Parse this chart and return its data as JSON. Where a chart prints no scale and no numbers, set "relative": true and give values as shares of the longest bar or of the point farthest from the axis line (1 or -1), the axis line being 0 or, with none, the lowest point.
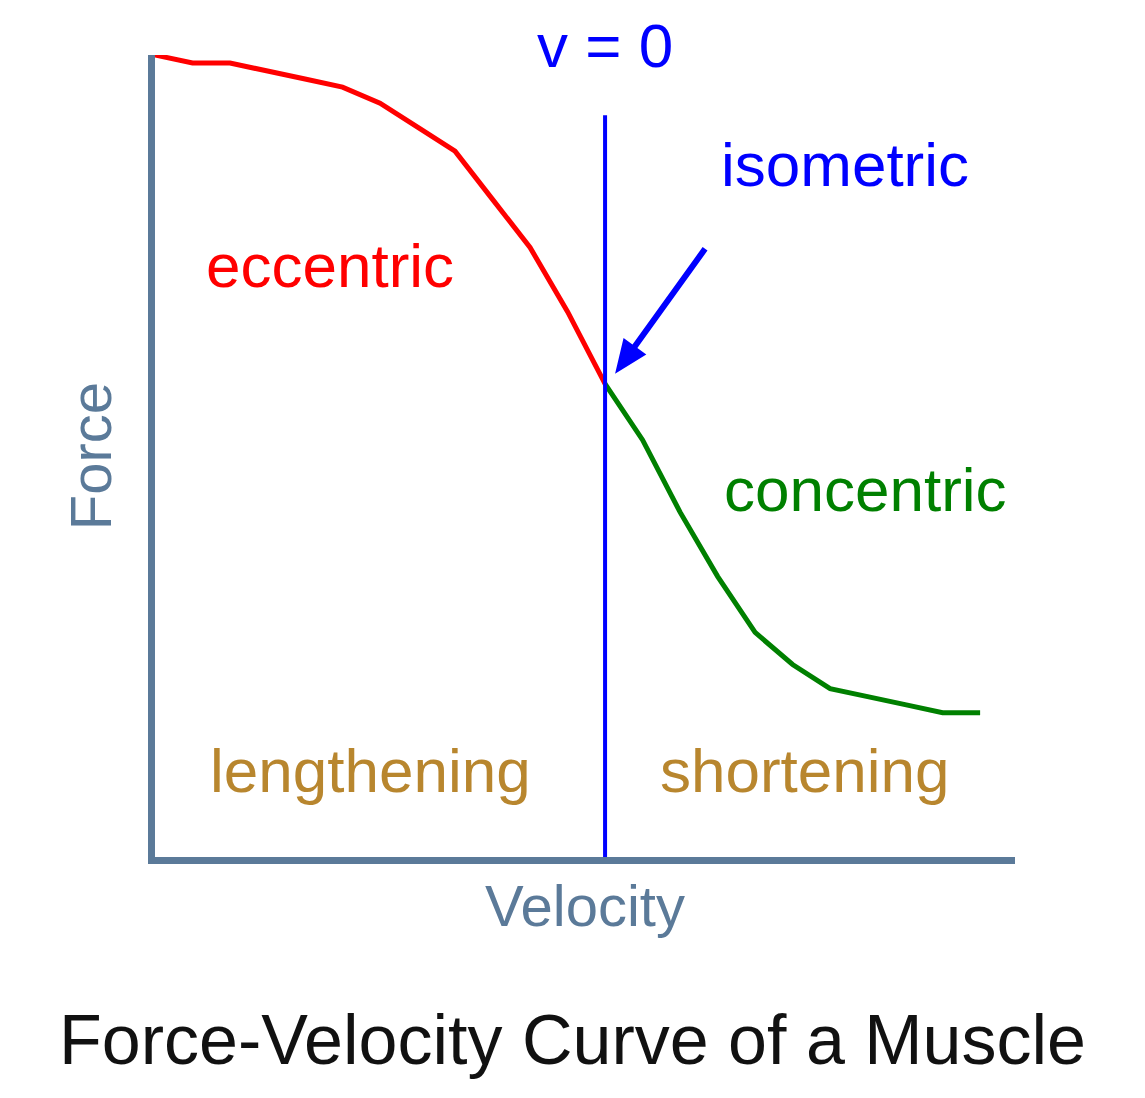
{
  "chart_data": {
    "type": "line",
    "relative": true,
    "title": "Force-Velocity Curve of a Muscle",
    "xlabel": "Velocity",
    "ylabel": "Force",
    "categories": [
      null,
      null,
      null,
      null,
      null,
      null,
      null,
      null,
      null,
      null,
      null,
      null,
      null,
      null,
      null,
      null,
      null,
      null,
      null,
      null,
      null,
      null,
      null
    ],
    "series": [
      {
        "color": "#ff0000",
        "values": [
          1.0,
          0.99,
          0.99,
          0.98,
          0.97,
          0.96,
          0.94,
          0.91,
          0.88,
          0.82,
          0.76,
          0.68,
          0.59,
          null,
          null,
          null,
          null,
          null,
          null,
          null,
          null,
          null,
          null
        ]
      },
      {
        "color": "#008000",
        "values": [
          null,
          null,
          null,
          null,
          null,
          null,
          null,
          null,
          null,
          null,
          null,
          null,
          0.59,
          0.52,
          0.43,
          0.35,
          0.28,
          0.24,
          0.21,
          0.2,
          0.19,
          0.18,
          0.18
        ]
      }
    ],
    "annotations": [
      "eccentric",
      "isometric",
      "concentric",
      "lengthening",
      "shortening",
      "v = 0"
    ],
    "tick_labels": false
  }
}
